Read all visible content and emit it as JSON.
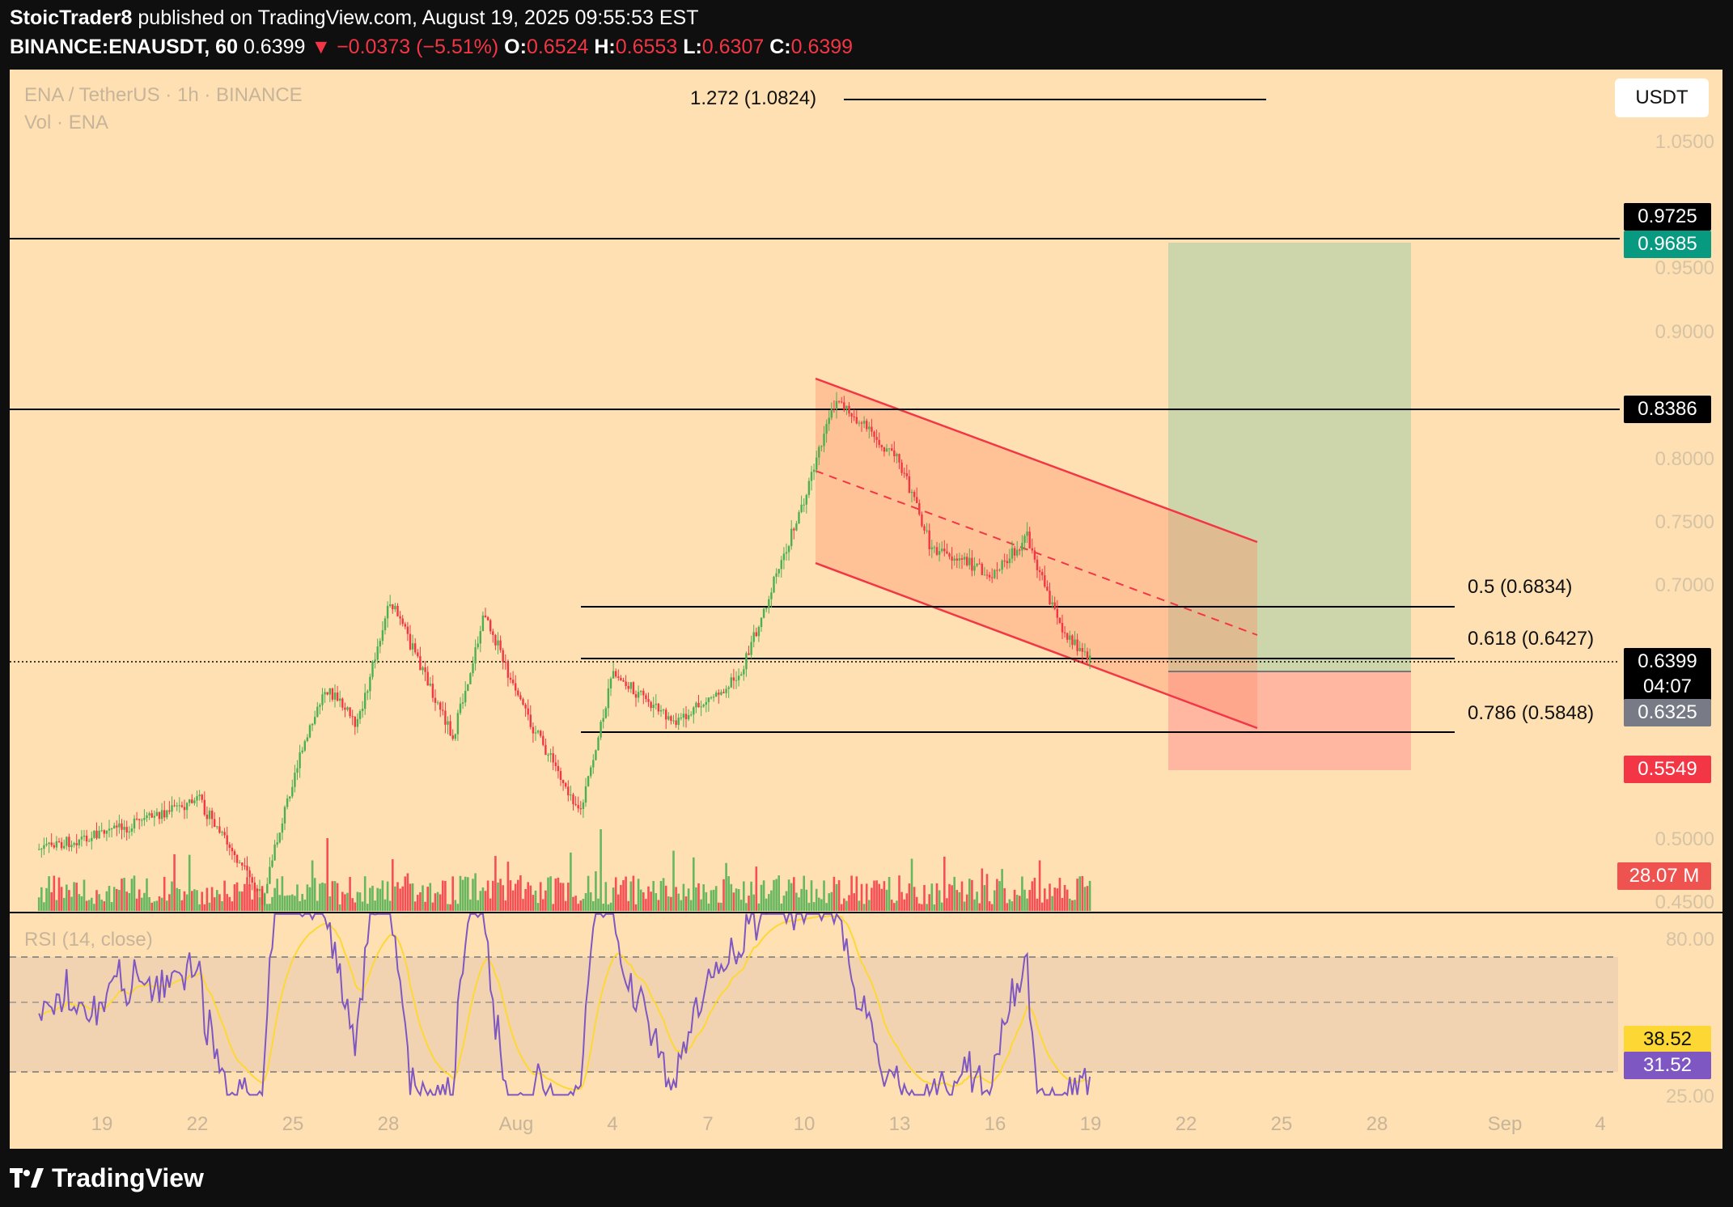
{
  "header": {
    "author": "StoicTrader8",
    "published": "published on TradingView.com, August 19, 2025 09:55:53 EST",
    "symbol": "BINANCE:ENAUSDT, 60",
    "last": "0.6399",
    "change": "−0.0373 (−5.51%)",
    "o_label": "O:",
    "o": "0.6524",
    "h_label": "H:",
    "h": "0.6553",
    "l_label": "L:",
    "l": "0.6307",
    "c_label": "C:",
    "c": "0.6399"
  },
  "legend": {
    "title": "ENA / TetherUS · 1h · BINANCE",
    "volume": "Vol · ENA",
    "rsi": "RSI (14, close)"
  },
  "currency_button": "USDT",
  "price_axis": [
    "1.0500",
    "0.9500",
    "0.9000",
    "0.8000",
    "0.7500",
    "0.7000",
    "0.5000",
    "0.4500"
  ],
  "rsi_axis": [
    "80.00",
    "25.00"
  ],
  "tags": {
    "tp_line": "0.9725",
    "target": "0.9685",
    "resistance": "0.8386",
    "last_price": "0.6399",
    "countdown": "04:07",
    "entry": "0.6325",
    "stop": "0.5549",
    "volume": "28.07 M",
    "rsi_ma": "38.52",
    "rsi": "31.52"
  },
  "fib": {
    "ext": "1.272 (1.0824)",
    "f50": "0.5 (0.6834)",
    "f618": "0.618 (0.6427)",
    "f786": "0.786 (0.5848)"
  },
  "x_axis": [
    "19",
    "22",
    "25",
    "28",
    "Aug",
    "4",
    "7",
    "10",
    "13",
    "16",
    "19",
    "22",
    "25",
    "28",
    "Sep",
    "4"
  ],
  "brand": "TradingView",
  "colors": {
    "background": "#ffe0b2",
    "up": "#4caf50",
    "down": "#f23645",
    "channel": "#f23645",
    "target_zone": "#c8d5a8",
    "stop_zone": "#ffb3a0",
    "rsi_line": "#7e57c2",
    "rsi_ma": "#fdd835"
  },
  "chart_data": {
    "type": "candlestick",
    "ylim": [
      0.45,
      1.1
    ],
    "price_path": [
      {
        "date": "Jul 17",
        "price": 0.49
      },
      {
        "date": "Jul 20",
        "price": 0.51
      },
      {
        "date": "Jul 22",
        "price": 0.53
      },
      {
        "date": "Jul 24",
        "price": 0.45
      },
      {
        "date": "Jul 25",
        "price": 0.55
      },
      {
        "date": "Jul 26",
        "price": 0.62
      },
      {
        "date": "Jul 27",
        "price": 0.59
      },
      {
        "date": "Jul 28",
        "price": 0.69
      },
      {
        "date": "Jul 30",
        "price": 0.58
      },
      {
        "date": "Jul 31",
        "price": 0.68
      },
      {
        "date": "Aug 1",
        "price": 0.61
      },
      {
        "date": "Aug 3",
        "price": 0.52
      },
      {
        "date": "Aug 4",
        "price": 0.63
      },
      {
        "date": "Aug 6",
        "price": 0.59
      },
      {
        "date": "Aug 8",
        "price": 0.63
      },
      {
        "date": "Aug 9",
        "price": 0.7
      },
      {
        "date": "Aug 10",
        "price": 0.77
      },
      {
        "date": "Aug 11",
        "price": 0.85
      },
      {
        "date": "Aug 13",
        "price": 0.8
      },
      {
        "date": "Aug 14",
        "price": 0.73
      },
      {
        "date": "Aug 16",
        "price": 0.71
      },
      {
        "date": "Aug 17",
        "price": 0.74
      },
      {
        "date": "Aug 18",
        "price": 0.67
      },
      {
        "date": "Aug 19",
        "price": 0.64
      }
    ],
    "horizontal_levels": [
      0.9725,
      0.8386
    ],
    "fib_levels": [
      {
        "ratio": 1.272,
        "price": 1.0824
      },
      {
        "ratio": 0.5,
        "price": 0.6834
      },
      {
        "ratio": 0.618,
        "price": 0.6427
      },
      {
        "ratio": 0.786,
        "price": 0.5848
      }
    ],
    "position": {
      "entry": 0.6325,
      "target": 0.9685,
      "stop": 0.5549
    },
    "last_price": 0.6399,
    "rsi": {
      "value": 31.52,
      "ma": 38.52,
      "bands": [
        70,
        50,
        30
      ]
    }
  }
}
